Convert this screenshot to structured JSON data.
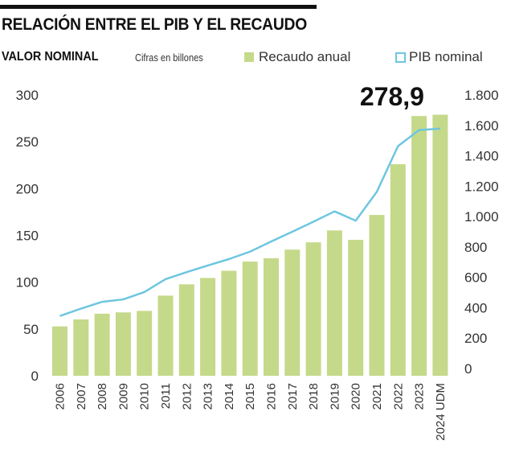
{
  "chart_data": {
    "type": "bar",
    "title": "RELACIÓN ENTRE EL PIB Y EL RECAUDO",
    "subtitle": "VALOR NOMINAL",
    "units_note": "Cifras en billones",
    "categories": [
      "2006",
      "2007",
      "2008",
      "2009",
      "2010",
      "2011",
      "2012",
      "2013",
      "2014",
      "2015",
      "2016",
      "2017",
      "2018",
      "2019",
      "2020",
      "2021",
      "2022",
      "2023",
      "2024 UDM"
    ],
    "series": [
      {
        "name": "Recaudo anual",
        "type": "bar",
        "axis": "left",
        "color": "#c5d98a",
        "values": [
          52.7,
          60.2,
          66.3,
          67.7,
          69.3,
          85.6,
          97.7,
          104.5,
          112.2,
          122.0,
          125.6,
          134.8,
          142.5,
          155.3,
          145.2,
          171.8,
          226.0,
          277.5,
          278.9
        ]
      },
      {
        "name": "PIB nominal",
        "type": "line",
        "axis": "right",
        "color": "#6ec6e0",
        "values": [
          346,
          394,
          439,
          455,
          503,
          588,
          634,
          678,
          720,
          769,
          836,
          900,
          966,
          1034,
          973,
          1163,
          1463,
          1569,
          1578
        ]
      }
    ],
    "left_axis": {
      "min": 0,
      "max": 300,
      "ticks": [
        "0",
        "50",
        "100",
        "150",
        "200",
        "250",
        "300"
      ],
      "tick_values": [
        0,
        50,
        100,
        150,
        200,
        250,
        300
      ]
    },
    "right_axis": {
      "min": 0,
      "max": 1800,
      "ticks": [
        "0",
        "200",
        "400",
        "600",
        "800",
        "1.000",
        "1.200",
        "1.400",
        "1.600",
        "1.800"
      ],
      "tick_values": [
        0,
        200,
        400,
        600,
        800,
        1000,
        1200,
        1400,
        1600,
        1800
      ]
    },
    "annotation": {
      "text": "278,9",
      "category": "2024 UDM"
    },
    "legend": {
      "placement": "top",
      "items": [
        "Recaudo anual",
        "PIB nominal"
      ]
    },
    "grid": false,
    "xlabel": "",
    "ylabel": "",
    "ylabel_right": ""
  }
}
